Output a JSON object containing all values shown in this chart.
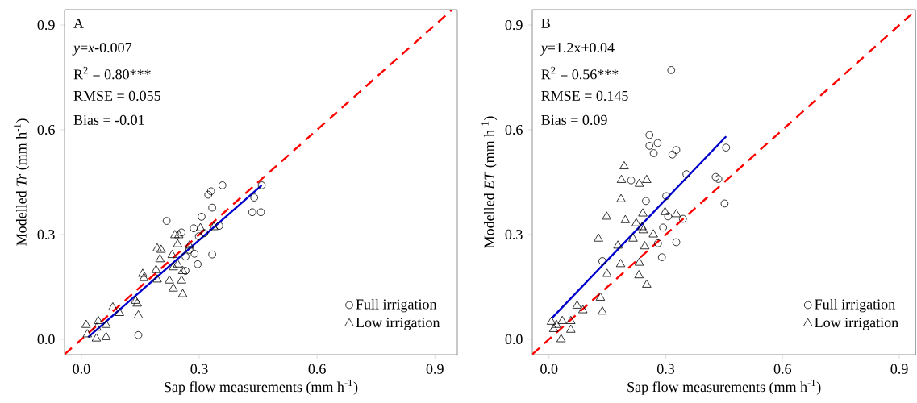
{
  "chart_data": [
    {
      "type": "scatter",
      "xlabel": "Sap flow measurements (mm h$^{-1}$)",
      "ylabel": "Modelled *Tr* (mm h$^{-1}$)",
      "annotations": [
        "A",
        "*y*=*x*-0.007",
        "R$^{2}$ = 0.80***",
        "RMSE = 0.055",
        "Bias = -0.01"
      ],
      "xlim": [
        -0.043,
        0.957
      ],
      "ylim": [
        -0.044,
        0.944
      ],
      "xticks": [
        {
          "value": 0,
          "label": "0.0"
        },
        0.3,
        0.6,
        0.9
      ],
      "yticks": [
        {
          "value": 0,
          "label": "0.0"
        },
        0.3,
        0.6,
        0.9
      ],
      "legend": "bottom right",
      "series": [
        {
          "name": "Full irrigation",
          "marker": "circle",
          "color": "#000000",
          "x": [
            0.359,
            0.33,
            0.323,
            0.459,
            0.44,
            0.435,
            0.457,
            0.333,
            0.306,
            0.217,
            0.255,
            0.286,
            0.351,
            0.299,
            0.313,
            0.275,
            0.288,
            0.265,
            0.333,
            0.296,
            0.265,
            0.145
          ],
          "values": [
            0.441,
            0.424,
            0.414,
            0.441,
            0.406,
            0.364,
            0.364,
            0.377,
            0.351,
            0.339,
            0.306,
            0.318,
            0.325,
            0.295,
            0.304,
            0.256,
            0.245,
            0.237,
            0.243,
            0.215,
            0.196,
            0.012
          ]
        },
        {
          "name": "Low irrigation",
          "marker": "triangle",
          "color": "#000000",
          "x": [
            0.303,
            0.337,
            0.238,
            0.248,
            0.245,
            0.275,
            0.193,
            0.203,
            0.2,
            0.231,
            0.245,
            0.234,
            0.258,
            0.19,
            0.156,
            0.159,
            0.193,
            0.224,
            0.255,
            0.234,
            0.258,
            0.138,
            0.142,
            0.08,
            0.097,
            0.145,
            0.012,
            0.043,
            0.039,
            0.063,
            0.015,
            0.038,
            0.063
          ],
          "values": [
            0.318,
            0.321,
            0.298,
            0.298,
            0.272,
            0.268,
            0.26,
            0.256,
            0.229,
            0.241,
            0.214,
            0.206,
            0.195,
            0.198,
            0.187,
            0.175,
            0.171,
            0.168,
            0.168,
            0.145,
            0.129,
            0.11,
            0.102,
            0.091,
            0.075,
            0.068,
            0.041,
            0.052,
            0.033,
            0.041,
            0.014,
            0.002,
            0.006
          ]
        },
        {
          "type": "line",
          "color": "#0000cc",
          "line_style": "solid",
          "x": [
            0.017,
            0.459
          ],
          "values": [
            0.006,
            0.441
          ]
        },
        {
          "type": "line",
          "color": "#ff0000",
          "line_style": "dashed",
          "x": [
            -0.043,
            0.944
          ],
          "values": [
            -0.043,
            0.944
          ]
        }
      ]
    },
    {
      "type": "scatter",
      "xlabel": "Sap flow measurements (mm h$^{-1}$)",
      "ylabel": "Modelled *ET* (mm h$^{-1}$)",
      "annotations": [
        "B",
        "*y*=1.2x+0.04",
        "R$^{2}$ = 0.56***",
        "RMSE = 0.145",
        "Bias = 0.09"
      ],
      "xlim": [
        -0.043,
        0.942
      ],
      "ylim": [
        -0.044,
        0.944
      ],
      "xticks": [
        {
          "value": 0,
          "label": "0.0"
        },
        0.3,
        0.6,
        0.9
      ],
      "yticks": [
        {
          "value": 0,
          "label": "0.0"
        },
        0.3,
        0.6,
        0.9
      ],
      "legend": "bottom right",
      "series": [
        {
          "name": "Full irrigation",
          "marker": "circle",
          "color": "#000000",
          "x": [
            0.258,
            0.258,
            0.279,
            0.269,
            0.317,
            0.327,
            0.455,
            0.353,
            0.428,
            0.435,
            0.451,
            0.211,
            0.249,
            0.301,
            0.306,
            0.344,
            0.293,
            0.28,
            0.327,
            0.29,
            0.137,
            0.314
          ],
          "values": [
            0.585,
            0.554,
            0.562,
            0.533,
            0.529,
            0.542,
            0.549,
            0.473,
            0.465,
            0.459,
            0.389,
            0.455,
            0.396,
            0.41,
            0.352,
            0.345,
            0.32,
            0.275,
            0.278,
            0.235,
            0.224,
            0.771
          ]
        },
        {
          "name": "Low irrigation",
          "marker": "triangle",
          "color": "#000000",
          "x": [
            0.193,
            0.186,
            0.232,
            0.251,
            0.185,
            0.148,
            0.196,
            0.241,
            0.298,
            0.327,
            0.224,
            0.239,
            0.242,
            0.268,
            0.127,
            0.177,
            0.216,
            0.246,
            0.184,
            0.232,
            0.149,
            0.231,
            0.251,
            0.072,
            0.087,
            0.132,
            0.137,
            0.006,
            0.034,
            0.056,
            0.012,
            0.056,
            0.031,
            0.019
          ],
          "values": [
            0.495,
            0.456,
            0.445,
            0.456,
            0.401,
            0.351,
            0.341,
            0.36,
            0.364,
            0.358,
            0.332,
            0.321,
            0.312,
            0.3,
            0.288,
            0.268,
            0.288,
            0.266,
            0.215,
            0.219,
            0.187,
            0.183,
            0.156,
            0.096,
            0.083,
            0.119,
            0.079,
            0.05,
            0.052,
            0.052,
            0.029,
            0.027,
            0.0,
            0.041
          ]
        },
        {
          "type": "line",
          "color": "#0000cc",
          "line_style": "solid",
          "x": [
            0.007,
            0.455
          ],
          "values": [
            0.06,
            0.581
          ]
        },
        {
          "type": "line",
          "color": "#ff0000",
          "line_style": "dashed",
          "x": [
            -0.043,
            0.942
          ],
          "values": [
            -0.043,
            0.942
          ]
        }
      ]
    }
  ]
}
